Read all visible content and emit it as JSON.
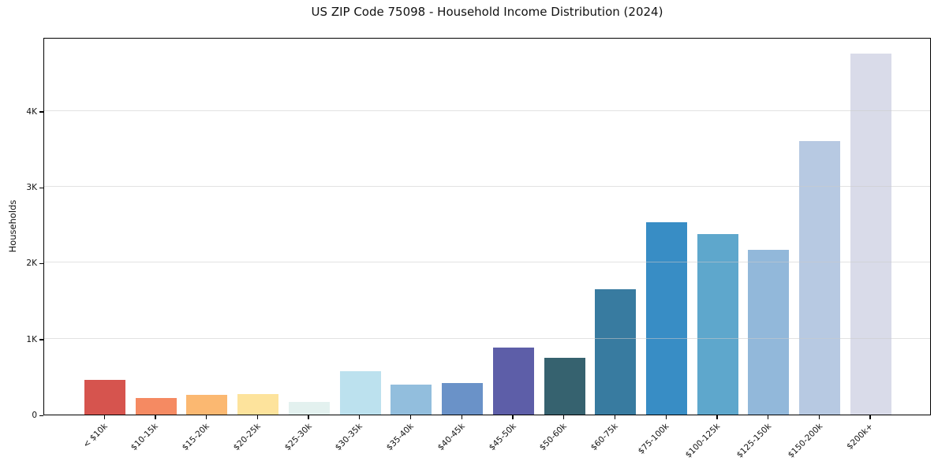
{
  "figure": {
    "background": "#ffffff"
  },
  "chart_data": {
    "type": "bar",
    "title": "US ZIP Code 75098 - Household Income Distribution (2024)",
    "xlabel": "",
    "ylabel": "Households",
    "categories": [
      "< $10k",
      "$10-15k",
      "$15-20k",
      "$20-25k",
      "$25-30k",
      "$30-35k",
      "$35-40k",
      "$40-45k",
      "$45-50k",
      "$50-60k",
      "$60-75k",
      "$75-100k",
      "$100-125k",
      "$125-150k",
      "$150-200k",
      "$200k+"
    ],
    "values": [
      460,
      215,
      255,
      275,
      170,
      575,
      400,
      415,
      885,
      750,
      1655,
      2530,
      2380,
      2170,
      3605,
      4760
    ],
    "bar_colors": [
      "#d6544e",
      "#f58a62",
      "#fbb871",
      "#fde39c",
      "#e3f1ef",
      "#bce1ee",
      "#92bedd",
      "#6a92c8",
      "#5d5ea8",
      "#36626f",
      "#387ba0",
      "#388dc5",
      "#5ea7cc",
      "#92b8da",
      "#b7c9e2",
      "#d9dbe9"
    ],
    "ylim": [
      0,
      4975
    ],
    "yticks": [
      {
        "value": 0,
        "label": "0"
      },
      {
        "value": 1000,
        "label": "1K"
      },
      {
        "value": 2000,
        "label": "2K"
      },
      {
        "value": 3000,
        "label": "3K"
      },
      {
        "value": 4000,
        "label": "4K"
      }
    ],
    "grid": "horizontal-y",
    "grid_color": "#e3e3e3",
    "axis_color": "#000000",
    "text_color": "#111111",
    "legend": "none",
    "x_tick_rotation_deg": 45
  }
}
